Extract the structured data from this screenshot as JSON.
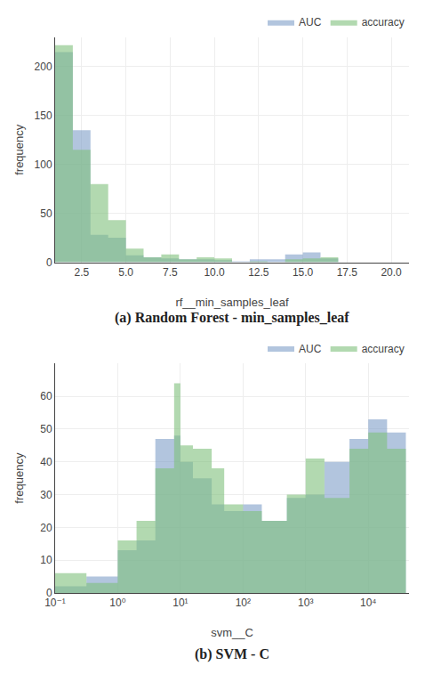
{
  "chart_data": [
    {
      "type": "histogram",
      "title": "(a) Random Forest - min_samples_leaf",
      "xlabel": "rf__min_samples_leaf",
      "ylabel": "frequency",
      "bins": [
        1,
        2,
        3,
        4,
        5,
        6,
        7,
        8,
        9,
        10,
        11,
        12,
        13,
        14,
        15,
        16,
        17,
        18,
        19,
        20
      ],
      "series": [
        {
          "name": "AUC",
          "color": "#7f9ec8",
          "values": [
            215,
            135,
            28,
            25,
            7,
            5,
            4,
            3,
            3,
            2,
            1,
            3,
            3,
            8,
            10,
            4,
            0,
            0,
            0
          ]
        },
        {
          "name": "accuracy",
          "color": "#7fbf7b",
          "values": [
            222,
            115,
            80,
            43,
            14,
            5,
            8,
            3,
            5,
            4,
            0,
            1,
            0,
            3,
            4,
            5,
            0,
            0,
            0
          ]
        }
      ],
      "xlim": [
        1,
        21
      ],
      "xticks": [
        2.5,
        {
          "value": 5,
          "label": "5.0"
        },
        7.5,
        {
          "value": 10,
          "label": "10.0"
        },
        12.5,
        {
          "value": 15,
          "label": "15.0"
        },
        17.5,
        {
          "value": 20,
          "label": "20.0"
        }
      ],
      "ylim": [
        0,
        230
      ],
      "yticks": [
        0,
        50,
        100,
        150,
        200
      ],
      "grid": true,
      "legend": "upper right"
    },
    {
      "type": "histogram",
      "title": "(b) SVM - C",
      "xlabel": "svm__C",
      "ylabel": "frequency",
      "log": "x",
      "bins": [
        0.1,
        0.31622776601683794,
        1,
        1.9952623149688795,
        3.9810717055349722,
        7.943282347242815,
        10,
        15.848931924611133,
        31.622776601683793,
        50.11872336272722,
        100,
        199.52623149688787,
        501.18723362727224,
        1000,
        1995.2623149688789,
        5011.872336272725,
        10000,
        19952.62314968879,
        39810.71705534973
      ],
      "series": [
        {
          "name": "AUC",
          "color": "#7f9ec8",
          "values": [
            2,
            5,
            13,
            16,
            47,
            48,
            40,
            35,
            27,
            25,
            27,
            22,
            29,
            30,
            40,
            47,
            53,
            49
          ]
        },
        {
          "name": "accuracy",
          "color": "#7fbf7b",
          "values": [
            6,
            3,
            16,
            22,
            38,
            64,
            45,
            44,
            38,
            27,
            25,
            22,
            30,
            41,
            29,
            44,
            49,
            44
          ]
        }
      ],
      "xlim": [
        0.1,
        44668.35921509635
      ],
      "xticks": [
        {
          "value": 0.1,
          "label": "10⁻¹"
        },
        {
          "value": 1,
          "label": "10⁰"
        },
        {
          "value": 10,
          "label": "10¹"
        },
        {
          "value": 100,
          "label": "10²"
        },
        {
          "value": 1000,
          "label": "10³"
        },
        {
          "value": 10000,
          "label": "10⁴"
        }
      ],
      "ylim": [
        0,
        70
      ],
      "yticks": [
        0,
        10,
        20,
        30,
        40,
        50,
        60
      ],
      "grid": true,
      "legend": "upper right"
    }
  ]
}
